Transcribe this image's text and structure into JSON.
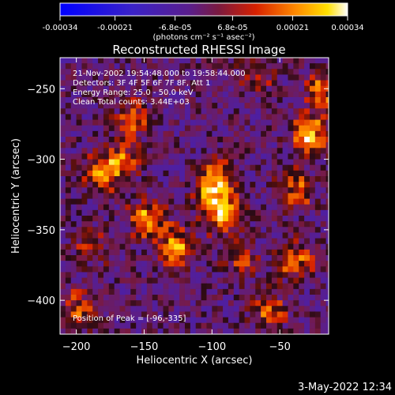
{
  "colorbar": {
    "tick_labels": [
      "-0.00034",
      "-0.00021",
      "-6.8e-05",
      "6.8e-05",
      "0.00021",
      "0.00034"
    ],
    "tick_values": [
      -0.00034,
      -0.00021,
      -6.8e-05,
      6.8e-05,
      0.00021,
      0.00034
    ],
    "range": [
      -0.00034,
      0.00034
    ],
    "unit_label": "(photons cm⁻² s⁻¹ asec⁻²)"
  },
  "chart_data": {
    "type": "heatmap",
    "title": "Reconstructed RHESSI Image",
    "xlabel": "Heliocentric X (arcsec)",
    "ylabel": "Heliocentric Y (arcsec)",
    "xlim": [
      -212,
      -14
    ],
    "ylim": [
      -424,
      -228
    ],
    "x_ticks": [
      -200,
      -150,
      -100,
      -50
    ],
    "y_ticks": [
      -250,
      -300,
      -350,
      -400
    ],
    "x_tick_labels": [
      "−200",
      "−150",
      "−100",
      "−50"
    ],
    "y_tick_labels": [
      "−250",
      "−300",
      "−350",
      "−400"
    ],
    "annotations": [
      "21-Nov-2002 19:54:48.000 to 19:58:44.000",
      "Detectors: 3F 4F 5F 6F 7F 8F, Att 1",
      "Energy Range: 25.0 - 50.0 keV",
      "Clean    Total counts: 3.44E+03"
    ],
    "peak_label": "Position of Peak = [-96,-335]",
    "peak": [
      -96,
      -335
    ],
    "bright_regions": [
      {
        "x": -96,
        "y": -335,
        "value": 0.00034
      },
      {
        "x": -100,
        "y": -315,
        "value": 0.0003
      },
      {
        "x": -130,
        "y": -360,
        "value": 0.00026
      },
      {
        "x": -150,
        "y": -340,
        "value": 0.00022
      },
      {
        "x": -170,
        "y": -300,
        "value": 0.0002
      },
      {
        "x": -185,
        "y": -310,
        "value": 0.00018
      },
      {
        "x": -160,
        "y": -270,
        "value": 0.00016
      },
      {
        "x": -30,
        "y": -280,
        "value": 0.00028
      },
      {
        "x": -20,
        "y": -250,
        "value": 0.0002
      },
      {
        "x": -40,
        "y": -320,
        "value": 0.00018
      },
      {
        "x": -40,
        "y": -370,
        "value": 0.00022
      },
      {
        "x": -60,
        "y": -405,
        "value": 0.00016
      },
      {
        "x": -200,
        "y": -405,
        "value": 0.00018
      },
      {
        "x": -190,
        "y": -360,
        "value": 0.00012
      },
      {
        "x": -80,
        "y": -370,
        "value": 0.00012
      },
      {
        "x": -70,
        "y": -240,
        "value": 0.0001
      }
    ]
  },
  "footer": {
    "date": "3-May-2022 12:34"
  }
}
